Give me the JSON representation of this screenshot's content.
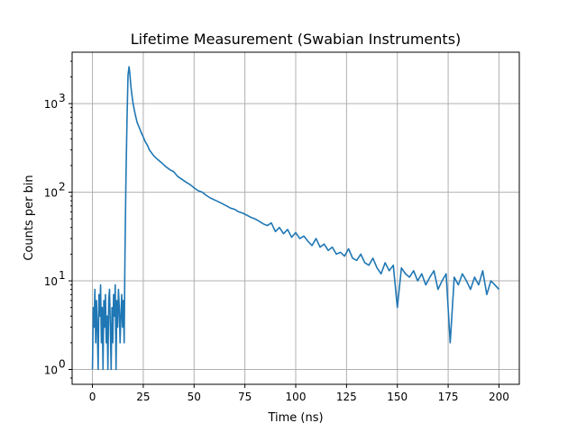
{
  "chart_data": {
    "type": "line",
    "title": "Lifetime Measurement (Swabian Instruments)",
    "xlabel": "Time (ns)",
    "ylabel": "Counts per bin",
    "xlim": [
      -10,
      210
    ],
    "ylim": [
      0.68,
      3800
    ],
    "yscale": "log",
    "grid": true,
    "xticks": [
      0,
      25,
      50,
      75,
      100,
      125,
      150,
      175,
      200
    ],
    "yticks": [
      1,
      10,
      100,
      1000
    ],
    "ytick_labels": [
      {
        "base": "10",
        "exp": "0"
      },
      {
        "base": "10",
        "exp": "1"
      },
      {
        "base": "10",
        "exp": "2"
      },
      {
        "base": "10",
        "exp": "3"
      }
    ],
    "series": [
      {
        "color": "#1f77b4",
        "x": [
          0,
          0.4,
          0.8,
          1.2,
          1.6,
          2.0,
          2.4,
          2.8,
          3.2,
          3.6,
          4.0,
          4.4,
          4.8,
          5.2,
          5.6,
          6.0,
          6.4,
          6.8,
          7.2,
          7.6,
          8.0,
          8.4,
          8.8,
          9.2,
          9.6,
          10.0,
          10.4,
          10.8,
          11.2,
          11.6,
          12.0,
          12.4,
          12.8,
          13.2,
          13.6,
          14.0,
          14.4,
          14.8,
          15.2,
          15.6,
          16.0,
          16.5,
          17.0,
          17.5,
          18.0,
          18.3,
          18.6,
          19.0,
          19.5,
          20,
          21,
          22,
          23,
          24,
          25,
          26,
          27,
          28,
          29,
          30,
          32,
          34,
          36,
          38,
          40,
          42,
          44,
          46,
          48,
          50,
          52,
          54,
          56,
          58,
          60,
          62,
          64,
          66,
          68,
          70,
          72,
          74,
          76,
          78,
          80,
          82,
          84,
          86,
          88,
          90,
          92,
          94,
          96,
          98,
          100,
          102,
          104,
          106,
          108,
          110,
          112,
          114,
          116,
          118,
          120,
          122,
          124,
          126,
          128,
          130,
          132,
          134,
          136,
          138,
          140,
          142,
          144,
          146,
          148,
          150,
          152,
          154,
          156,
          158,
          160,
          162,
          164,
          166,
          168,
          170,
          172,
          174,
          176,
          178,
          180,
          182,
          184,
          186,
          188,
          190,
          192,
          194,
          196,
          198,
          200
        ],
        "values": [
          1,
          5,
          3,
          8,
          2,
          6,
          3,
          1,
          7,
          4,
          9,
          2,
          5,
          1,
          6,
          3,
          7,
          2,
          4,
          1,
          6,
          8,
          3,
          1,
          5,
          2,
          7,
          4,
          9,
          1,
          6,
          3,
          8,
          5,
          2,
          4,
          7,
          3,
          6,
          2,
          20,
          150,
          650,
          2100,
          2600,
          2300,
          1900,
          1500,
          1200,
          1000,
          760,
          610,
          540,
          470,
          420,
          370,
          340,
          300,
          280,
          260,
          235,
          215,
          195,
          180,
          170,
          150,
          140,
          130,
          122,
          112,
          104,
          100,
          92,
          86,
          82,
          78,
          74,
          70,
          66,
          64,
          60,
          58,
          55,
          52,
          50,
          47,
          44,
          42,
          45,
          36,
          40,
          34,
          38,
          31,
          35,
          30,
          32,
          28,
          25,
          30,
          24,
          26,
          22,
          24,
          20,
          21,
          19,
          23,
          18,
          17,
          20,
          16,
          15,
          18,
          14,
          12,
          16,
          13,
          15,
          5,
          14,
          12,
          11,
          13,
          10,
          12,
          9,
          11,
          13,
          8,
          10,
          12,
          2,
          11,
          9,
          12,
          10,
          8,
          11,
          9,
          13,
          7,
          10,
          9,
          8
        ]
      }
    ]
  }
}
